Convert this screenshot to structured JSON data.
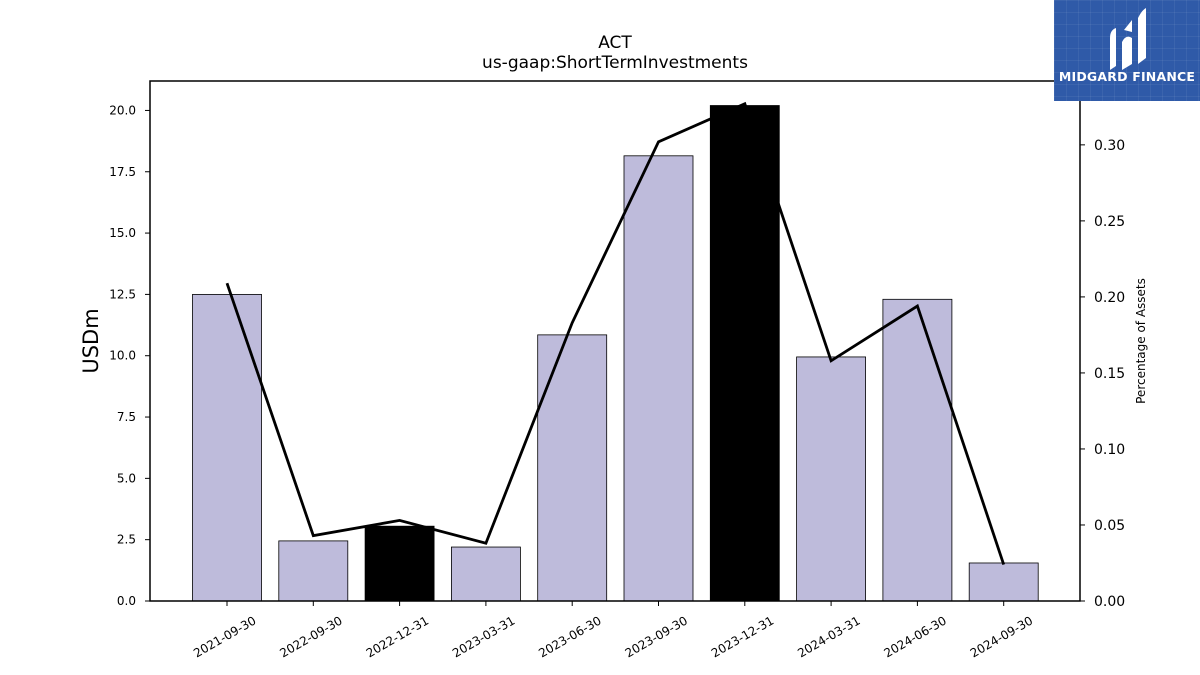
{
  "logo": {
    "text": "MIDGARD FINANCE",
    "icon": "midgard-m-icon",
    "bg_color": "#2f5aa8"
  },
  "chart_data": {
    "type": "bar",
    "title": "ACT",
    "subtitle": "us-gaap:ShortTermInvestments",
    "ylabel": "USDm",
    "y2label": "Percentage of Assets",
    "ylim": [
      0,
      21.2
    ],
    "y2lim": [
      0,
      0.342
    ],
    "yticks": [
      0.0,
      2.5,
      5.0,
      7.5,
      10.0,
      12.5,
      15.0,
      17.5,
      20.0
    ],
    "ytick_labels": [
      "0.0",
      "2.5",
      "5.0",
      "7.5",
      "10.0",
      "12.5",
      "15.0",
      "17.5",
      "20.0"
    ],
    "y2ticks": [
      0.0,
      0.05,
      0.1,
      0.15,
      0.2,
      0.25,
      0.3
    ],
    "y2tick_labels": [
      "0.00",
      "0.05",
      "0.10",
      "0.15",
      "0.20",
      "0.25",
      "0.30"
    ],
    "categories": [
      "2021-09-30",
      "2022-09-30",
      "2022-12-31",
      "2023-03-31",
      "2023-06-30",
      "2023-09-30",
      "2023-12-31",
      "2024-03-31",
      "2024-06-30",
      "2024-09-30"
    ],
    "values": [
      12.5,
      2.45,
      3.05,
      2.2,
      10.85,
      18.15,
      20.2,
      9.95,
      12.3,
      1.55
    ],
    "bar_colors": [
      "#bebbdb",
      "#bebbdb",
      "#000000",
      "#bebbdb",
      "#bebbdb",
      "#bebbdb",
      "#000000",
      "#bebbdb",
      "#bebbdb",
      "#bebbdb"
    ],
    "line_values": [
      0.209,
      0.043,
      0.053,
      0.038,
      0.183,
      0.302,
      0.327,
      0.158,
      0.194,
      0.024
    ],
    "line_color": "#000000",
    "grid": false
  }
}
